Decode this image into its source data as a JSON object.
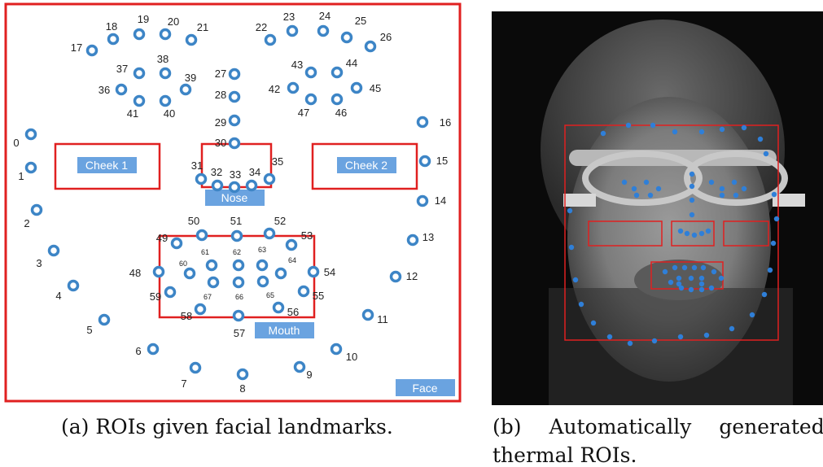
{
  "panel_a": {
    "roi_labels": {
      "cheek1": "Cheek 1",
      "cheek2": "Cheek 2",
      "nose": "Nose",
      "mouth": "Mouth",
      "face": "Face"
    },
    "landmarks": [
      {
        "id": "0",
        "label": "0"
      },
      {
        "id": "1",
        "label": "1"
      },
      {
        "id": "2",
        "label": "2"
      },
      {
        "id": "3",
        "label": "3"
      },
      {
        "id": "4",
        "label": "4"
      },
      {
        "id": "5",
        "label": "5"
      },
      {
        "id": "6",
        "label": "6"
      },
      {
        "id": "7",
        "label": "7"
      },
      {
        "id": "8",
        "label": "8"
      },
      {
        "id": "9",
        "label": "9"
      },
      {
        "id": "10",
        "label": "10"
      },
      {
        "id": "11",
        "label": "11"
      },
      {
        "id": "12",
        "label": "12"
      },
      {
        "id": "13",
        "label": "13"
      },
      {
        "id": "14",
        "label": "14"
      },
      {
        "id": "15",
        "label": "15"
      },
      {
        "id": "16",
        "label": "16"
      },
      {
        "id": "17",
        "label": "17"
      },
      {
        "id": "18",
        "label": "18"
      },
      {
        "id": "19",
        "label": "19"
      },
      {
        "id": "20",
        "label": "20"
      },
      {
        "id": "21",
        "label": "21"
      },
      {
        "id": "22",
        "label": "22"
      },
      {
        "id": "23",
        "label": "23"
      },
      {
        "id": "24",
        "label": "24"
      },
      {
        "id": "25",
        "label": "25"
      },
      {
        "id": "26",
        "label": "26"
      },
      {
        "id": "27",
        "label": "27"
      },
      {
        "id": "28",
        "label": "28"
      },
      {
        "id": "29",
        "label": "29"
      },
      {
        "id": "30",
        "label": "30"
      },
      {
        "id": "31",
        "label": "31"
      },
      {
        "id": "32",
        "label": "32"
      },
      {
        "id": "33",
        "label": "33"
      },
      {
        "id": "34",
        "label": "34"
      },
      {
        "id": "35",
        "label": "35"
      },
      {
        "id": "36",
        "label": "36"
      },
      {
        "id": "37",
        "label": "37"
      },
      {
        "id": "38",
        "label": "38"
      },
      {
        "id": "39",
        "label": "39"
      },
      {
        "id": "40",
        "label": "40"
      },
      {
        "id": "41",
        "label": "41"
      },
      {
        "id": "42",
        "label": "42"
      },
      {
        "id": "43",
        "label": "43"
      },
      {
        "id": "44",
        "label": "44"
      },
      {
        "id": "45",
        "label": "45"
      },
      {
        "id": "46",
        "label": "46"
      },
      {
        "id": "47",
        "label": "47"
      },
      {
        "id": "48",
        "label": "48"
      },
      {
        "id": "49",
        "label": "49"
      },
      {
        "id": "50",
        "label": "50"
      },
      {
        "id": "51",
        "label": "51"
      },
      {
        "id": "52",
        "label": "52"
      },
      {
        "id": "53",
        "label": "53"
      },
      {
        "id": "54",
        "label": "54"
      },
      {
        "id": "55",
        "label": "55"
      },
      {
        "id": "56",
        "label": "56"
      },
      {
        "id": "57",
        "label": "57"
      },
      {
        "id": "58",
        "label": "58"
      },
      {
        "id": "59",
        "label": "59"
      },
      {
        "id": "60",
        "label": "60"
      },
      {
        "id": "61",
        "label": "61"
      },
      {
        "id": "62",
        "label": "62"
      },
      {
        "id": "63",
        "label": "63"
      },
      {
        "id": "64",
        "label": "64"
      },
      {
        "id": "65",
        "label": "65"
      },
      {
        "id": "66",
        "label": "66"
      },
      {
        "id": "67",
        "label": "67"
      }
    ]
  },
  "captions": {
    "a": "(a) ROIs given facial landmarks.",
    "b_line1": "(b) Automatically generated",
    "b_line2": "thermal ROIs."
  },
  "colors": {
    "roi_box": "#e02020",
    "landmark": "#3d85c6",
    "label_fill": "#6aa3e0",
    "thermal_dot": "#2f7fd8"
  }
}
